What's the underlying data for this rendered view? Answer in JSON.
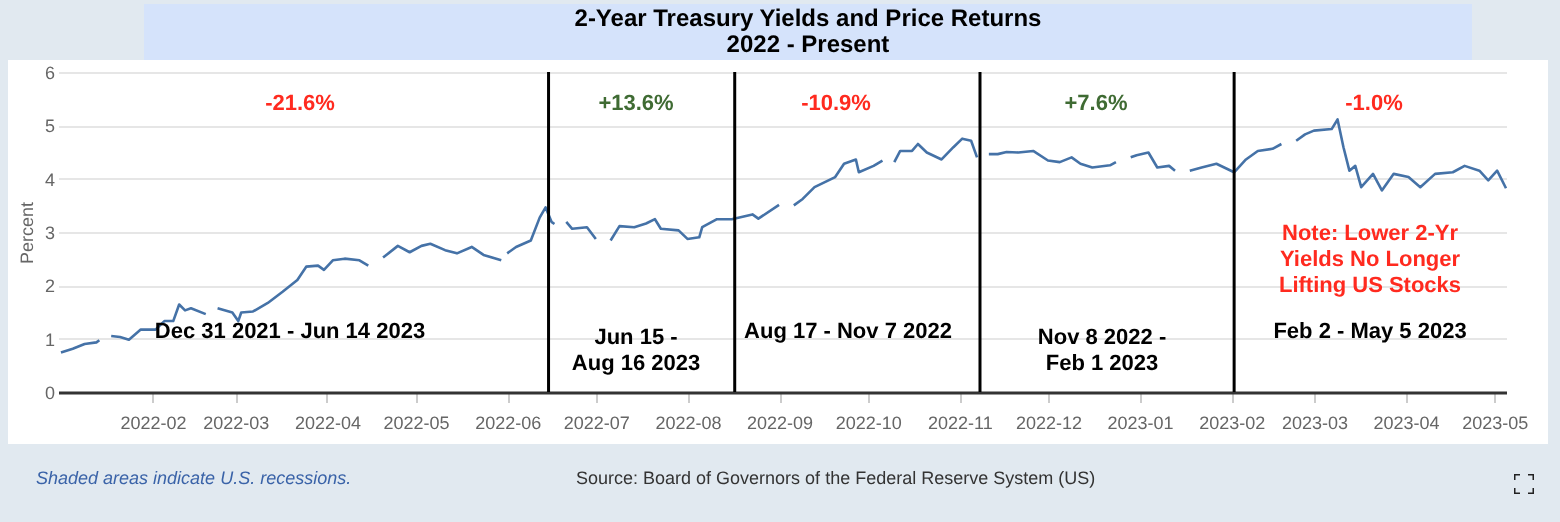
{
  "chart_data": {
    "type": "line",
    "title": "2-Year Treasury Yields and Price Returns",
    "subtitle": "2022 - Present",
    "ylabel": "Percent",
    "x": [
      "2022-01-01",
      "2022-01-05",
      "2022-01-09",
      "2022-01-13",
      "2022-01-14",
      "2022-01-16",
      "2022-01-18",
      "2022-01-21",
      "2022-01-24",
      "2022-01-28",
      "2022-02-02",
      "2022-02-05",
      "2022-02-08",
      "2022-02-10",
      "2022-02-12",
      "2022-02-14",
      "2022-02-19",
      "2022-02-21",
      "2022-02-23",
      "2022-02-28",
      "2022-03-02",
      "2022-03-03",
      "2022-03-07",
      "2022-03-12",
      "2022-03-17",
      "2022-03-22",
      "2022-03-25",
      "2022-03-29",
      "2022-03-31",
      "2022-04-03",
      "2022-04-07",
      "2022-04-12",
      "2022-04-15",
      "2022-04-17",
      "2022-04-20",
      "2022-04-25",
      "2022-04-29",
      "2022-05-03",
      "2022-05-06",
      "2022-05-11",
      "2022-05-15",
      "2022-05-20",
      "2022-05-24",
      "2022-05-30",
      "2022-05-31",
      "2022-06-01",
      "2022-06-04",
      "2022-06-09",
      "2022-06-12",
      "2022-06-14",
      "2022-06-16",
      "2022-06-17",
      "2022-06-19",
      "2022-06-21",
      "2022-06-23",
      "2022-06-28",
      "2022-07-01",
      "2022-07-03",
      "2022-07-06",
      "2022-07-09",
      "2022-07-14",
      "2022-07-18",
      "2022-07-21",
      "2022-07-23",
      "2022-07-29",
      "2022-08-01",
      "2022-08-05",
      "2022-08-06",
      "2022-08-11",
      "2022-08-16",
      "2022-08-23",
      "2022-08-25",
      "2022-09-01",
      "2022-09-03",
      "2022-09-06",
      "2022-09-09",
      "2022-09-13",
      "2022-09-20",
      "2022-09-23",
      "2022-09-27",
      "2022-09-28",
      "2022-10-03",
      "2022-10-06",
      "2022-10-08",
      "2022-10-10",
      "2022-10-12",
      "2022-10-16",
      "2022-10-18",
      "2022-10-21",
      "2022-10-26",
      "2022-10-30",
      "2022-11-02",
      "2022-11-05",
      "2022-11-07",
      "2022-11-09",
      "2022-11-11",
      "2022-11-14",
      "2022-11-17",
      "2022-11-21",
      "2022-11-26",
      "2022-12-01",
      "2022-12-05",
      "2022-12-09",
      "2022-12-12",
      "2022-12-16",
      "2022-12-22",
      "2022-12-24",
      "2022-12-26",
      "2022-12-29",
      "2022-12-31",
      "2023-01-04",
      "2023-01-07",
      "2023-01-11",
      "2023-01-13",
      "2023-01-15",
      "2023-01-18",
      "2023-01-22",
      "2023-01-27",
      "2023-02-02",
      "2023-02-06",
      "2023-02-10",
      "2023-02-15",
      "2023-02-18",
      "2023-02-20",
      "2023-02-23",
      "2023-02-26",
      "2023-03-01",
      "2023-03-07",
      "2023-03-09",
      "2023-03-11",
      "2023-03-13",
      "2023-03-15",
      "2023-03-17",
      "2023-03-21",
      "2023-03-24",
      "2023-03-28",
      "2023-04-02",
      "2023-04-06",
      "2023-04-11",
      "2023-04-17",
      "2023-04-21",
      "2023-04-26",
      "2023-04-29",
      "2023-05-02",
      "2023-05-05"
    ],
    "series": [
      {
        "color": "#4572a7",
        "values": [
          0.74,
          0.81,
          0.9,
          0.93,
          0.97,
          null,
          1.05,
          1.03,
          0.98,
          1.17,
          1.17,
          1.33,
          1.33,
          1.64,
          1.53,
          1.57,
          1.46,
          null,
          1.57,
          1.49,
          1.33,
          1.49,
          1.51,
          1.67,
          1.88,
          2.1,
          2.35,
          2.37,
          2.29,
          2.47,
          2.5,
          2.47,
          2.37,
          null,
          2.52,
          2.74,
          2.62,
          2.74,
          2.78,
          2.66,
          2.6,
          2.72,
          2.57,
          2.47,
          null,
          2.6,
          2.72,
          2.84,
          3.27,
          3.46,
          3.19,
          3.15,
          null,
          3.19,
          3.06,
          3.09,
          2.87,
          null,
          2.84,
          3.11,
          3.09,
          3.16,
          3.24,
          3.06,
          3.03,
          2.87,
          2.9,
          3.09,
          3.24,
          3.24,
          3.33,
          3.25,
          3.51,
          null,
          3.5,
          3.62,
          3.84,
          4.03,
          4.28,
          4.36,
          4.12,
          4.24,
          4.34,
          null,
          4.31,
          4.52,
          4.52,
          4.65,
          4.49,
          4.36,
          4.59,
          4.75,
          4.71,
          4.4,
          null,
          4.46,
          4.46,
          4.5,
          4.49,
          4.52,
          4.34,
          4.31,
          4.4,
          4.28,
          4.21,
          4.25,
          4.31,
          null,
          4.4,
          4.44,
          4.49,
          4.21,
          4.24,
          4.15,
          null,
          4.15,
          4.21,
          4.28,
          4.12,
          4.36,
          4.52,
          4.56,
          4.65,
          null,
          4.71,
          4.83,
          4.9,
          4.93,
          5.11,
          4.59,
          4.15,
          4.24,
          3.84,
          4.09,
          3.78,
          4.09,
          4.03,
          3.84,
          4.09,
          4.12,
          4.24,
          4.15,
          3.97,
          4.15,
          3.82
        ]
      }
    ],
    "xlim": [
      "2021-12-31",
      "2023-05-05"
    ],
    "xticks": [
      "2022-02",
      "2022-03",
      "2022-04",
      "2022-05",
      "2022-06",
      "2022-07",
      "2022-08",
      "2022-09",
      "2022-10",
      "2022-11",
      "2022-12",
      "2023-01",
      "2023-02",
      "2023-03",
      "2023-04",
      "2023-05"
    ],
    "ylim": [
      0,
      6
    ],
    "yticks": [
      0,
      1,
      2,
      3,
      4,
      5,
      6
    ],
    "grid": "y",
    "ref_lines": [
      {
        "axis": "x",
        "value": "2022-06-15",
        "color": "#000000"
      },
      {
        "axis": "x",
        "value": "2022-08-17",
        "color": "#000000"
      },
      {
        "axis": "x",
        "value": "2022-11-08",
        "color": "#000000"
      },
      {
        "axis": "x",
        "value": "2023-02-02",
        "color": "#000000"
      }
    ],
    "annotations": [
      "-21.6%",
      "+13.6%",
      "-10.9%",
      "+7.6%",
      "-1.0%",
      "Dec 31 2021 - Jun 14 2023",
      "Jun 15 -\nAug 16 2023",
      "Aug 17 - Nov 7 2022",
      "Nov 8 2022 -\nFeb 1 2023",
      "Feb 2 - May 5 2023",
      "Note: Lower 2-Yr\nYields No Longer\nLifting US Stocks",
      "Shaded areas indicate U.S. recessions.",
      "Source: Board of Governors of the Federal Reserve System (US)"
    ]
  }
}
